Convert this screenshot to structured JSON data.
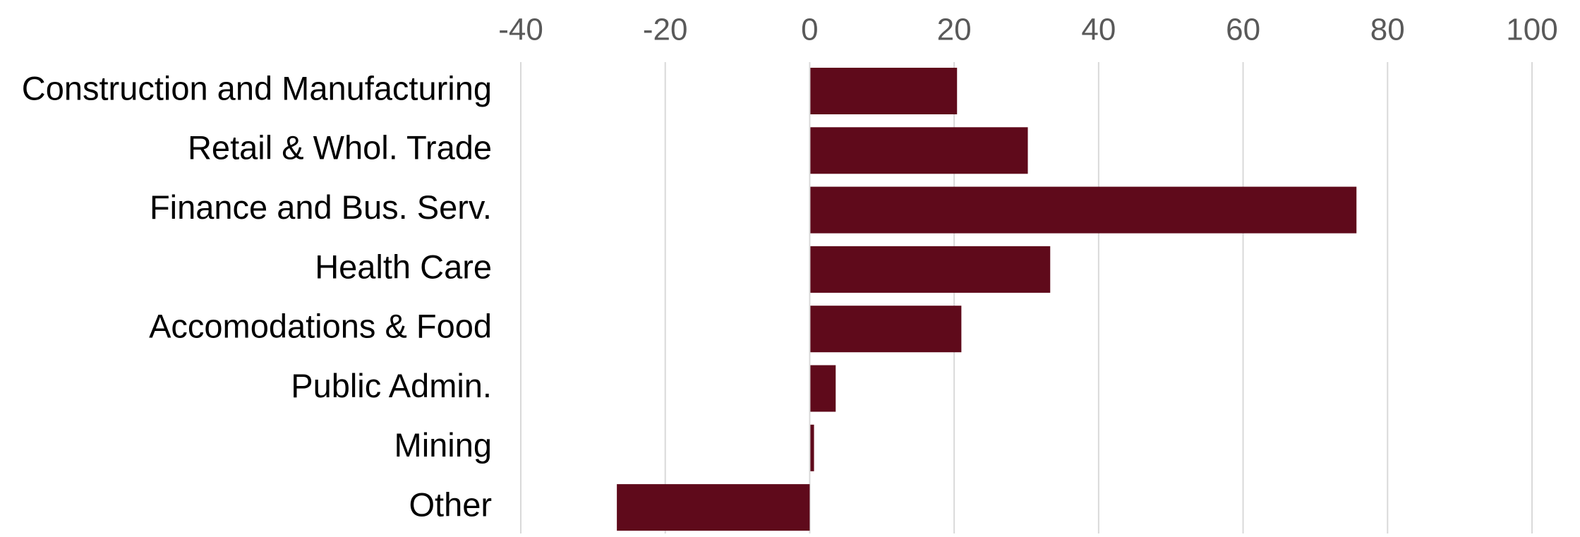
{
  "chart_data": {
    "type": "bar",
    "orientation": "horizontal",
    "categories": [
      "Construction and Manufacturing",
      "Retail & Whol. Trade",
      "Finance and Bus. Serv.",
      "Health Care",
      "Accomodations & Food",
      "Public Admin.",
      "Mining",
      "Other"
    ],
    "values": [
      20.3,
      30.1,
      75.6,
      33.2,
      20.9,
      3.5,
      0.5,
      -26.7
    ],
    "xlim": [
      -40,
      100
    ],
    "xticks": [
      -40,
      -20,
      0,
      20,
      40,
      60,
      80,
      100
    ],
    "xtick_labels": [
      "-40",
      "-20",
      "0",
      "20",
      "40",
      "60",
      "80",
      "100"
    ],
    "x_axis_position": "top",
    "grid": true,
    "legend": "none",
    "colors": {
      "bar": "#5f0a1b",
      "grid": "#d9d9d9",
      "tick_text": "#595959",
      "category_text": "#000000"
    }
  }
}
